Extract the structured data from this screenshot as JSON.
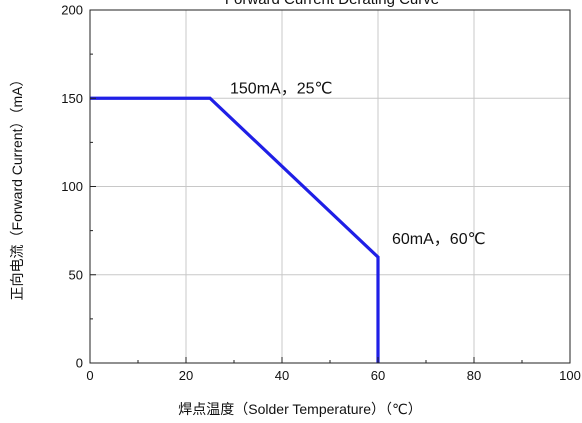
{
  "chart_data": {
    "type": "line",
    "title": "Forward Current Derating Curve",
    "xlabel": "焊点温度（Solder Temperature）（℃）",
    "ylabel": "正向电流（Forward Current）（mA）",
    "xlim": [
      0,
      100
    ],
    "ylim": [
      0,
      200
    ],
    "xticks": [
      0,
      20,
      40,
      60,
      80,
      100
    ],
    "yticks": [
      0,
      50,
      100,
      150,
      200
    ],
    "grid": true,
    "series": [
      {
        "color": "#1f1fe6",
        "x": [
          0,
          25,
          60,
          60
        ],
        "y": [
          150,
          150,
          60,
          0
        ]
      }
    ],
    "annotations": [
      {
        "text": "150mA，25℃",
        "x": 25,
        "y": 150
      },
      {
        "text": "60mA，60℃",
        "x": 60,
        "y": 60
      }
    ]
  }
}
